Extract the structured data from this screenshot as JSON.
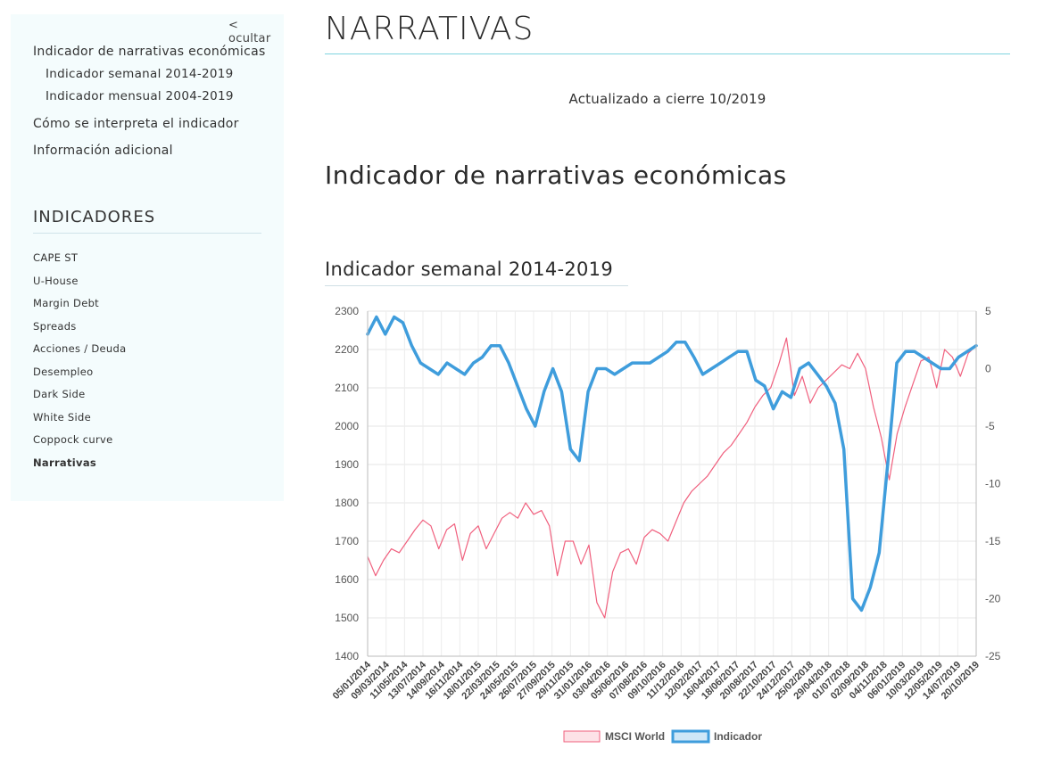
{
  "sidebar": {
    "hide_label": "< ocultar",
    "nav": [
      {
        "label": "Indicador de narrativas económicas",
        "sub": false
      },
      {
        "label": "Indicador semanal 2014-2019",
        "sub": true
      },
      {
        "label": "Indicador mensual 2004-2019",
        "sub": true
      },
      {
        "label": "Cómo se interpreta el indicador",
        "sub": false
      },
      {
        "label": "Información adicional",
        "sub": false
      }
    ],
    "indicators_heading": "INDICADORES",
    "indicators": [
      {
        "label": "CAPE ST",
        "active": false
      },
      {
        "label": "U-House",
        "active": false
      },
      {
        "label": "Margin Debt",
        "active": false
      },
      {
        "label": "Spreads",
        "active": false
      },
      {
        "label": "Acciones / Deuda",
        "active": false
      },
      {
        "label": "Desempleo",
        "active": false
      },
      {
        "label": "Dark Side",
        "active": false
      },
      {
        "label": "White Side",
        "active": false
      },
      {
        "label": "Coppock curve",
        "active": false
      },
      {
        "label": "Narrativas",
        "active": true
      }
    ]
  },
  "main": {
    "title": "NARRATIVAS",
    "updated": "Actualizado a cierre 10/2019",
    "section_title": "Indicador de narrativas económicas",
    "subsection_title": "Indicador semanal 2014-2019"
  },
  "chart_data": {
    "type": "line",
    "x_labels": [
      "05/01/2014",
      "09/03/2014",
      "11/05/2014",
      "13/07/2014",
      "14/09/2014",
      "16/11/2014",
      "18/01/2015",
      "22/03/2015",
      "24/05/2015",
      "26/07/2015",
      "27/09/2015",
      "29/11/2015",
      "31/01/2016",
      "03/04/2016",
      "05/06/2016",
      "07/08/2016",
      "09/10/2016",
      "11/12/2016",
      "12/02/2017",
      "16/04/2017",
      "18/06/2017",
      "20/08/2017",
      "22/10/2017",
      "24/12/2017",
      "25/02/2018",
      "29/04/2018",
      "01/07/2018",
      "02/09/2018",
      "04/11/2018",
      "06/01/2019",
      "10/03/2019",
      "12/05/2019",
      "14/07/2019",
      "20/10/2019"
    ],
    "y_left": {
      "min": 1400,
      "max": 2300,
      "ticks": [
        1400,
        1500,
        1600,
        1700,
        1800,
        1900,
        2000,
        2100,
        2200,
        2300
      ]
    },
    "y_right": {
      "min": -25,
      "max": 5,
      "ticks": [
        -25,
        -20,
        -15,
        -10,
        -5,
        0,
        5
      ]
    },
    "grid": true,
    "legend_position": "bottom",
    "series": [
      {
        "name": "MSCI World",
        "axis": "left",
        "color": "#f0607e",
        "fill": "#fde2e7",
        "values": [
          1660,
          1610,
          1650,
          1680,
          1670,
          1700,
          1730,
          1755,
          1740,
          1680,
          1730,
          1745,
          1650,
          1720,
          1740,
          1680,
          1720,
          1760,
          1775,
          1760,
          1800,
          1770,
          1780,
          1740,
          1610,
          1700,
          1700,
          1640,
          1690,
          1540,
          1500,
          1620,
          1670,
          1680,
          1640,
          1710,
          1730,
          1720,
          1700,
          1750,
          1800,
          1830,
          1850,
          1870,
          1900,
          1930,
          1950,
          1980,
          2010,
          2050,
          2080,
          2100,
          2160,
          2230,
          2080,
          2130,
          2060,
          2100,
          2120,
          2140,
          2160,
          2150,
          2190,
          2150,
          2050,
          1970,
          1860,
          1980,
          2050,
          2110,
          2170,
          2180,
          2100,
          2200,
          2180,
          2130,
          2190,
          2210
        ]
      },
      {
        "name": "Indicador",
        "axis": "right",
        "color": "#3f9ddc",
        "fill": "#cfe7f7",
        "values": [
          3,
          4.5,
          3,
          4.5,
          4,
          2,
          0.5,
          0,
          -0.5,
          0.5,
          0,
          -0.5,
          0.5,
          1,
          2,
          2,
          0.5,
          -1.5,
          -3.5,
          -5,
          -2,
          0,
          -2,
          -7,
          -8,
          -2,
          0,
          0,
          -0.5,
          0,
          0.5,
          0.5,
          0.5,
          1,
          1.5,
          2.3,
          2.3,
          1,
          -0.5,
          0,
          0.5,
          1,
          1.5,
          1.5,
          -1,
          -1.5,
          -3.5,
          -2,
          -2.5,
          0,
          0.5,
          -0.5,
          -1.5,
          -3,
          -7,
          -20,
          -21,
          -19,
          -16,
          -8,
          0.5,
          1.5,
          1.5,
          1,
          0.5,
          0,
          0,
          1,
          1.5,
          2
        ]
      }
    ]
  }
}
